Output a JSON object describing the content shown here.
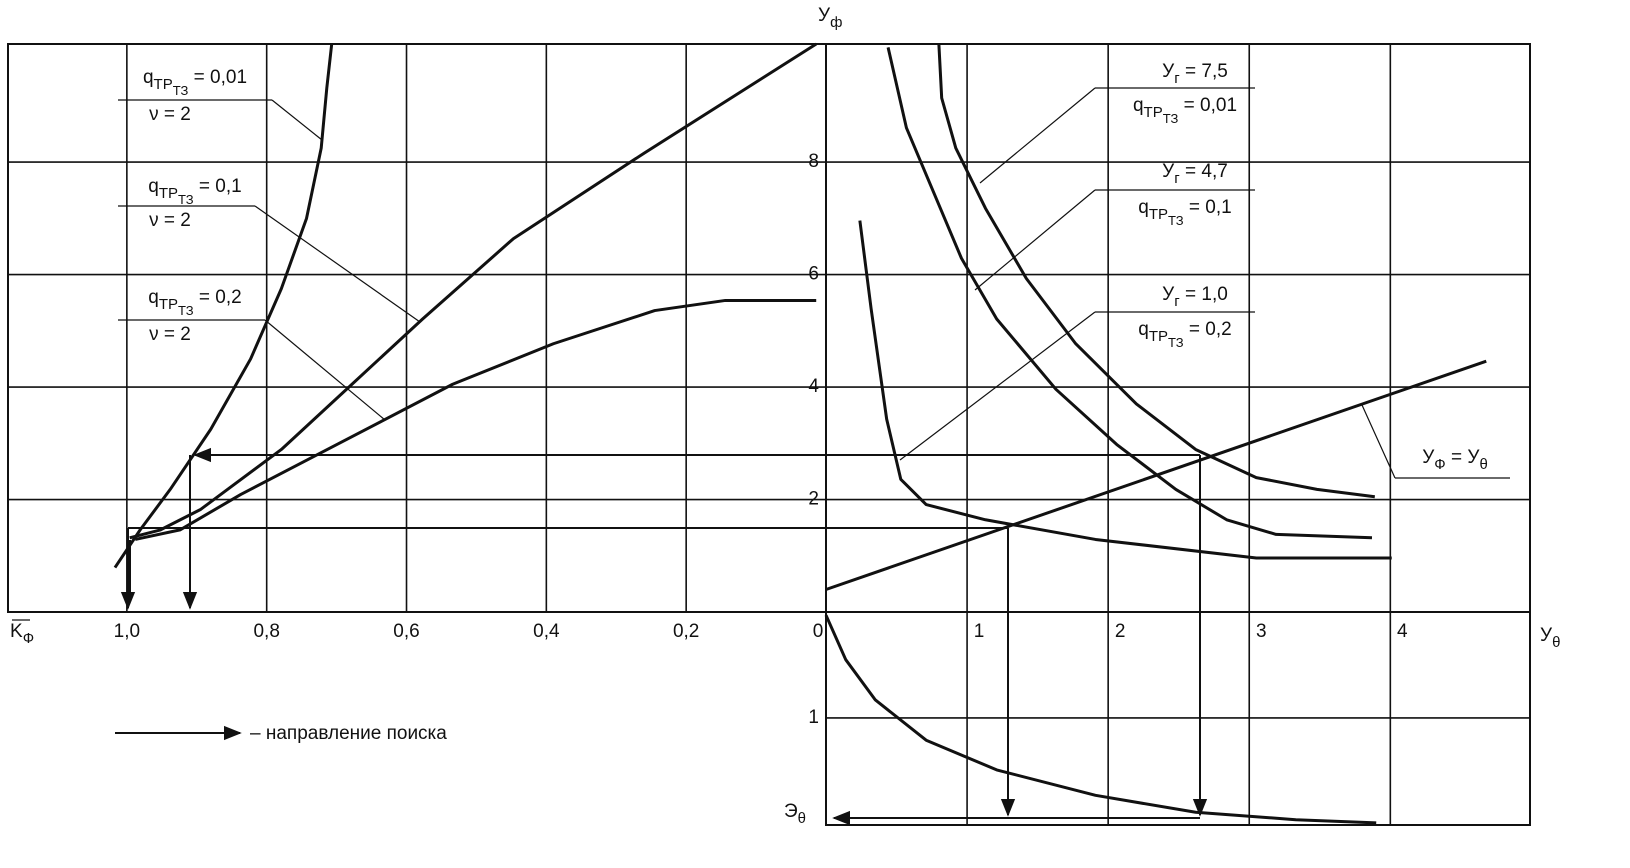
{
  "chart_data": [
    {
      "type": "line",
      "x_label": "K",
      "x_label_sub": "Ф",
      "xlim": [
        1.17,
        0
      ],
      "xticks": [
        {
          "value": 1.0,
          "label": "1,0"
        },
        {
          "value": 0.8,
          "label": "0,8"
        },
        {
          "value": 0.6,
          "label": "0,6"
        },
        {
          "value": 0.4,
          "label": "0,4"
        },
        {
          "value": 0.2,
          "label": "0,2"
        }
      ],
      "ylim": [
        0,
        10.1
      ],
      "series": [
        {
          "color": "#111111",
          "x": [
            1.017,
            0.981,
            0.938,
            0.88,
            0.823,
            0.779,
            0.743,
            0.722,
            0.714,
            0.707
          ],
          "values": [
            0.79,
            1.46,
            2.18,
            3.25,
            4.5,
            5.75,
            7.0,
            8.25,
            9.32,
            10.1
          ]
        },
        {
          "color": "#111111",
          "x": [
            0.996,
            0.952,
            0.895,
            0.779,
            0.678,
            0.577,
            0.447,
            0.26,
            0.014
          ],
          "values": [
            1.32,
            1.46,
            1.82,
            2.89,
            4.05,
            5.21,
            6.64,
            8.16,
            10.1
          ]
        },
        {
          "color": "#111111",
          "x": [
            0.988,
            0.924,
            0.837,
            0.707,
            0.534,
            0.39,
            0.245,
            0.144,
            0.014
          ],
          "values": [
            1.29,
            1.46,
            2.09,
            2.93,
            4.05,
            4.77,
            5.36,
            5.54,
            5.54
          ]
        }
      ],
      "annotations": [
        {
          "q": "q",
          "q_sub": "ТР",
          "q_subsub": "ТЗ",
          "q_rest": " = 0,01",
          "nu": "ν = 2"
        },
        {
          "q": "q",
          "q_sub": "ТР",
          "q_subsub": "ТЗ",
          "q_rest": " = 0,1",
          "nu": "ν = 2"
        },
        {
          "q": "q",
          "q_sub": "ТР",
          "q_subsub": "ТЗ",
          "q_rest": " = 0,2",
          "nu": "ν = 2"
        }
      ],
      "note": "– направление поиска"
    },
    {
      "type": "line",
      "x_label": "У",
      "x_label_sub": "θ",
      "y_label": "У",
      "y_label_sub": "ф",
      "xlim": [
        0,
        4.99
      ],
      "xticks": [
        0,
        1,
        2,
        3,
        4
      ],
      "ylim": [
        0,
        10.1
      ],
      "yticks": [
        2,
        4,
        6,
        8
      ],
      "series": [
        {
          "color": "#111111",
          "x": [
            0.8,
            0.82,
            0.92,
            1.13,
            1.42,
            1.77,
            2.2,
            2.62,
            3.05,
            3.48,
            3.89
          ],
          "values": [
            10.1,
            9.14,
            8.25,
            7.18,
            5.93,
            4.77,
            3.7,
            2.89,
            2.39,
            2.18,
            2.05
          ]
        },
        {
          "color": "#111111",
          "x": [
            0.44,
            0.57,
            0.78,
            0.96,
            1.21,
            1.63,
            2.06,
            2.48,
            2.84,
            3.19,
            3.87
          ],
          "values": [
            10.04,
            8.61,
            7.36,
            6.29,
            5.21,
            3.96,
            2.98,
            2.18,
            1.64,
            1.38,
            1.32
          ]
        },
        {
          "color": "#111111",
          "x": [
            0.24,
            0.32,
            0.43,
            0.53,
            0.71,
            1.13,
            1.91,
            3.05,
            4.01
          ],
          "values": [
            6.96,
            5.39,
            3.43,
            2.36,
            1.91,
            1.64,
            1.29,
            0.96,
            0.96
          ]
        },
        {
          "color": "#111111",
          "x": [
            0,
            4.68
          ],
          "values": [
            0.4,
            4.46
          ]
        }
      ],
      "annotations": [
        {
          "y": "У",
          "y_sub": "г",
          "y_rest": " = 7,5",
          "q": "q",
          "q_sub": "ТР",
          "q_subsub": "ТЗ",
          "q_rest": " = 0,01"
        },
        {
          "y": "У",
          "y_sub": "г",
          "y_rest": " = 4,7",
          "q": "q",
          "q_sub": "ТР",
          "q_subsub": "ТЗ",
          "q_rest": " = 0,1"
        },
        {
          "y": "У",
          "y_sub": "г",
          "y_rest": " = 1,0",
          "q": "q",
          "q_sub": "ТР",
          "q_subsub": "ТЗ",
          "q_rest": " = 0,2"
        }
      ],
      "line_label": {
        "a": "У",
        "a_sub": "Ф",
        "b": " = У",
        "b_sub": "θ"
      }
    },
    {
      "type": "line",
      "y_label": "Э",
      "y_label_sub": "θ",
      "ylim": [
        0,
        2.01
      ],
      "yticks": [
        1
      ],
      "series": [
        {
          "color": "#111111",
          "x": [
            0,
            0.14,
            0.35,
            0.71,
            1.21,
            1.91,
            2.62,
            3.33,
            3.9
          ],
          "values": [
            0.03,
            0.45,
            0.83,
            1.21,
            1.49,
            1.73,
            1.89,
            1.96,
            1.99
          ]
        }
      ]
    }
  ]
}
